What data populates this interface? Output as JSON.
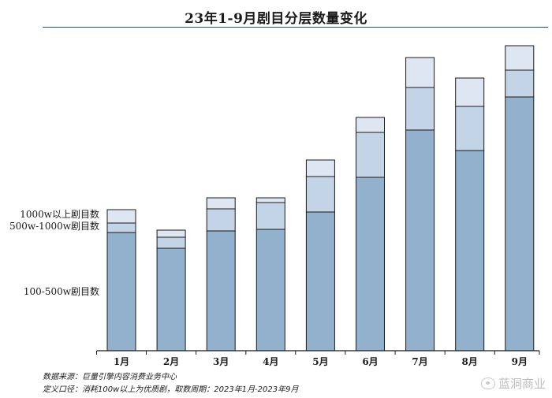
{
  "header": {
    "title": "23年1-9月剧目分层数量变化"
  },
  "chart_data": {
    "type": "bar",
    "stacked": true,
    "title": "23年1-9月剧目分层数量变化",
    "categories": [
      "1月",
      "2月",
      "3月",
      "4月",
      "5月",
      "6月",
      "7月",
      "8月",
      "9月"
    ],
    "series": [
      {
        "name": "100-500w剧目数",
        "values": [
          150,
          130,
          152,
          154,
          176,
          220,
          280,
          254,
          322
        ],
        "color": "#92b1cd"
      },
      {
        "name": "500w-1000w剧目数",
        "values": [
          12,
          14,
          28,
          34,
          45,
          57,
          54,
          56,
          34
        ],
        "color": "#c2d4e5"
      },
      {
        "name": "1000w以上剧目数",
        "values": [
          17,
          9,
          14,
          6,
          21,
          19,
          38,
          36,
          31
        ],
        "color": "#dee7f1"
      }
    ],
    "legend_position": "left, beside first bar",
    "grid": false,
    "y_axis_visible": false,
    "ylim": [
      0,
      400
    ]
  },
  "footer": {
    "source": "数据来源：巨量引擎内容消费业务中心",
    "definition": "定义口径：消耗100w以上为优质剧，取数周期：2023年1月-2023年9月"
  },
  "watermark": {
    "text": "蓝洞商业"
  }
}
